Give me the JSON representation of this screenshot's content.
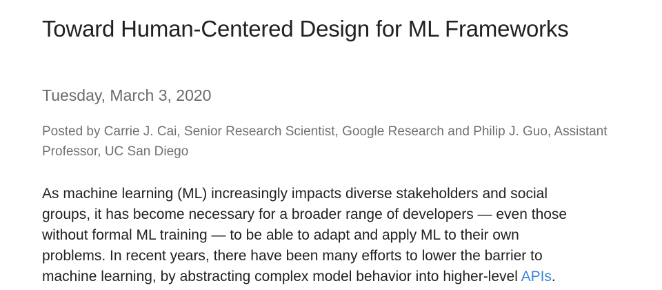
{
  "post": {
    "title": "Toward Human-Centered Design for ML Frameworks",
    "date": "Tuesday, March 3, 2020",
    "byline": "Posted by Carrie J. Cai, Senior Research Scientist, Google Research and Philip J. Guo, Assistant Professor, UC San Diego",
    "body_lines": [
      "As machine learning (ML) increasingly impacts diverse stakeholders and social",
      "groups, it has become necessary for a broader range of developers — even those",
      "without formal ML training — to be able to adapt and apply ML to their own",
      "problems. In recent years, there have been many efforts to lower the barrier to",
      "machine learning, by abstracting complex model behavior into higher-level "
    ],
    "link_text": "APIs",
    "after_link": ".",
    "link_color": "#3a82d6"
  }
}
